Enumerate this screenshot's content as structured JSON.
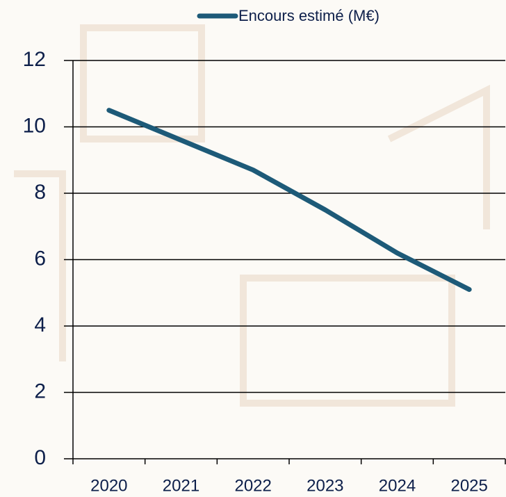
{
  "chart_data": {
    "type": "line",
    "categories": [
      "2020",
      "2021",
      "2022",
      "2023",
      "2024",
      "2025"
    ],
    "series": [
      {
        "name": "Encours estimé (M€)",
        "color": "#1d5a78",
        "values": [
          10.5,
          9.6,
          8.7,
          7.5,
          6.2,
          5.1
        ]
      }
    ],
    "ylim": [
      0,
      12
    ],
    "yticks": [
      0,
      2,
      4,
      6,
      8,
      10,
      12
    ],
    "grid": true,
    "legend": "top"
  }
}
